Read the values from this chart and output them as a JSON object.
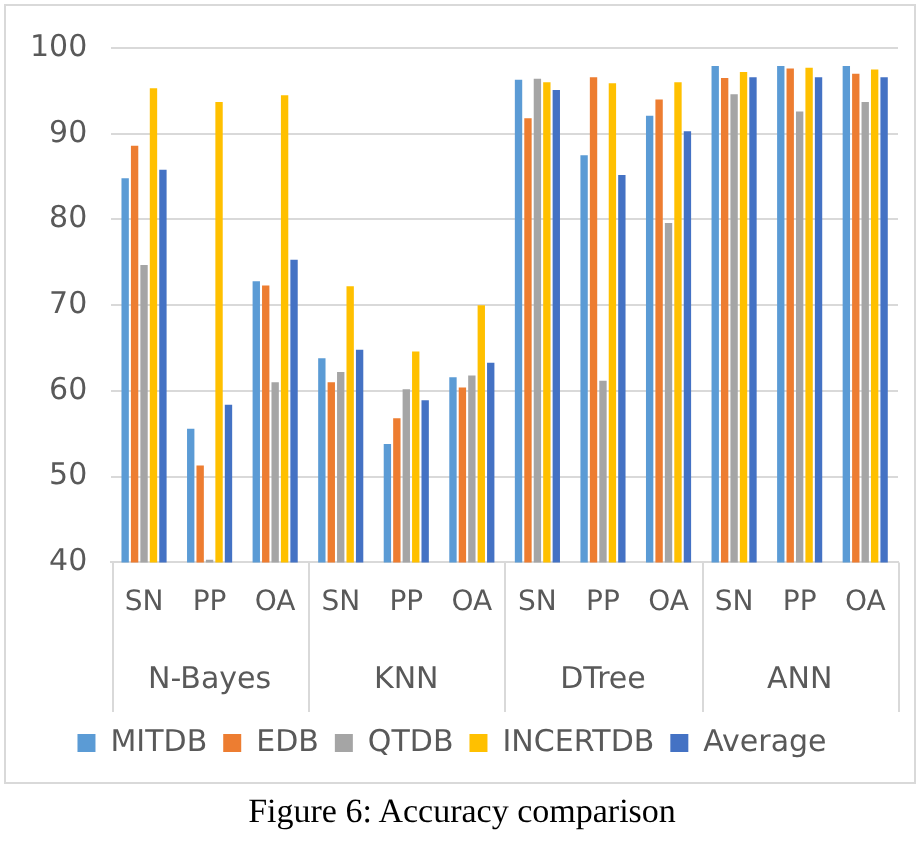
{
  "chart_data": {
    "type": "bar",
    "title": "Figure 6: Accuracy comparison",
    "categories": [
      "SN",
      "PP",
      "OA",
      "SN",
      "PP",
      "OA",
      "SN",
      "PP",
      "OA",
      "SN",
      "PP",
      "OA"
    ],
    "annotations": [
      "N-Bayes",
      "KNN",
      "DTree",
      "ANN"
    ],
    "series": [
      {
        "name": "MITDB",
        "color": "#5b9bd5",
        "values": [
          84.8,
          55.6,
          72.8,
          63.8,
          53.8,
          61.6,
          96.3,
          87.5,
          92.1,
          97.9,
          97.9,
          97.9
        ]
      },
      {
        "name": "EDB",
        "color": "#ed7d31",
        "values": [
          88.6,
          51.3,
          72.3,
          61.0,
          56.8,
          60.4,
          91.8,
          96.6,
          94.0,
          96.5,
          97.6,
          97.0
        ]
      },
      {
        "name": "QTDB",
        "color": "#a5a5a5",
        "values": [
          74.7,
          40.3,
          61.0,
          62.2,
          60.2,
          61.8,
          96.4,
          61.2,
          79.6,
          94.6,
          92.6,
          93.7
        ]
      },
      {
        "name": "INCERTDB",
        "color": "#ffc000",
        "values": [
          95.3,
          93.7,
          94.5,
          72.2,
          64.6,
          70.0,
          96.0,
          95.9,
          96.0,
          97.2,
          97.7,
          97.5
        ]
      },
      {
        "name": "Average",
        "color": "#4472c4",
        "values": [
          85.8,
          58.4,
          75.3,
          64.8,
          58.9,
          63.3,
          95.1,
          85.2,
          90.3,
          96.6,
          96.6,
          96.6
        ]
      }
    ],
    "ylim": [
      40,
      100
    ],
    "yticks": [
      40,
      50,
      60,
      70,
      80,
      90,
      100
    ],
    "grid": "y",
    "legend": "bottom"
  }
}
